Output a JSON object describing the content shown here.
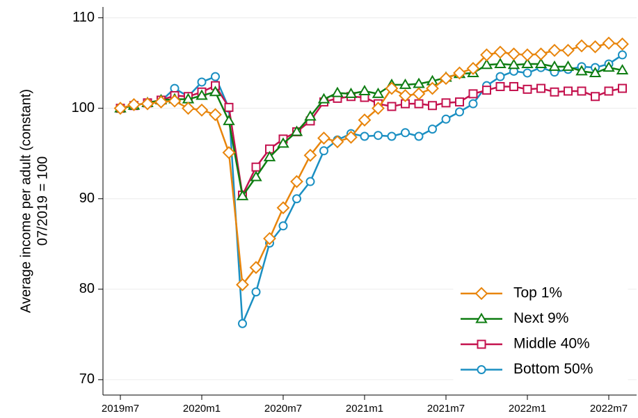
{
  "chart_data": {
    "type": "line",
    "ylabel": [
      "Average income per adult (constant)",
      "07/2019 = 100"
    ],
    "categories": [
      "2019m7",
      null,
      null,
      null,
      null,
      null,
      "2020m1",
      null,
      null,
      null,
      null,
      null,
      "2020m7",
      null,
      null,
      null,
      null,
      null,
      "2021m1",
      null,
      null,
      null,
      null,
      null,
      "2021m7",
      null,
      null,
      null,
      null,
      null,
      "2022m1",
      null,
      null,
      null,
      null,
      null,
      "2022m7",
      null
    ],
    "series": [
      {
        "name": "Top 1%",
        "color": "#e8850c",
        "marker": "diamond",
        "values": [
          100,
          100.4,
          100.5,
          100.7,
          100.8,
          100.0,
          99.8,
          99.3,
          95.1,
          80.5,
          82.4,
          85.6,
          89.0,
          91.9,
          94.8,
          96.7,
          96.3,
          96.8,
          98.7,
          100.0,
          102.2,
          101.4,
          101.6,
          102.2,
          103.3,
          103.9,
          104.4,
          105.9,
          106.2,
          106.0,
          105.9,
          106.0,
          106.4,
          106.4,
          106.9,
          106.8,
          107.2,
          107.1
        ]
      },
      {
        "name": "Next 9%",
        "color": "#0e7d12",
        "marker": "triangle",
        "values": [
          100,
          100.3,
          100.6,
          100.9,
          101.0,
          101.0,
          101.4,
          101.8,
          98.6,
          90.3,
          92.4,
          94.6,
          96.1,
          97.4,
          99.1,
          101.0,
          101.7,
          101.6,
          101.9,
          101.6,
          102.6,
          102.6,
          102.7,
          103.0,
          103.4,
          103.8,
          103.9,
          104.8,
          104.9,
          104.8,
          104.9,
          104.9,
          104.6,
          104.6,
          104.1,
          103.9,
          104.5,
          104.2
        ]
      },
      {
        "name": "Middle 40%",
        "color": "#c4124e",
        "marker": "square",
        "values": [
          100,
          100.3,
          100.6,
          100.9,
          101.4,
          101.3,
          101.8,
          102.5,
          100.1,
          90.4,
          93.5,
          95.5,
          96.6,
          97.4,
          98.6,
          100.7,
          101.1,
          101.3,
          101.2,
          100.5,
          100.2,
          100.5,
          100.5,
          100.3,
          100.6,
          100.7,
          101.6,
          102.0,
          102.4,
          102.4,
          102.1,
          102.2,
          101.8,
          101.9,
          101.9,
          101.3,
          101.9,
          102.2
        ]
      },
      {
        "name": "Bottom 50%",
        "color": "#1a8fc2",
        "marker": "circle",
        "values": [
          100,
          100.3,
          100.6,
          100.8,
          102.2,
          101.3,
          102.9,
          103.5,
          100.0,
          76.2,
          79.7,
          85.1,
          87.0,
          90.0,
          91.9,
          95.3,
          96.5,
          97.2,
          96.9,
          97.0,
          96.9,
          97.3,
          96.9,
          97.7,
          98.8,
          99.6,
          100.5,
          102.5,
          103.5,
          104.1,
          103.9,
          104.5,
          104.0,
          104.3,
          104.6,
          104.5,
          104.9,
          105.9
        ]
      }
    ],
    "ylim": [
      68.3,
      111.2
    ],
    "yticks": [
      70,
      80,
      90,
      100,
      110
    ],
    "grid": true,
    "legend": "lower right"
  }
}
